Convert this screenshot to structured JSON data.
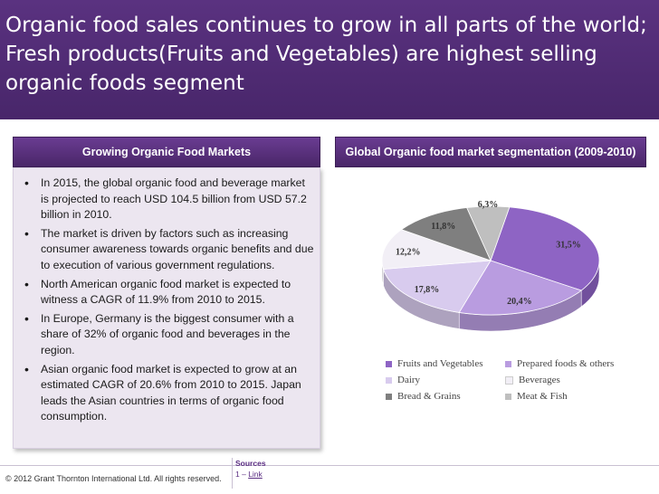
{
  "title": "Organic food sales continues to grow in all parts of the world; Fresh products(Fruits and Vegetables) are highest selling organic foods segment",
  "left_panel": {
    "header": "Growing Organic Food Markets",
    "bullets": [
      " In 2015, the global organic food and beverage market is projected to reach USD 104.5 billion from USD 57.2 billion in 2010.",
      "The market is driven by factors such as increasing consumer awareness towards organic benefits and due to execution of various government regulations.",
      "North American organic food market is expected to witness a CAGR of 11.9% from 2010 to 2015.",
      "In Europe, Germany is the biggest consumer with a share of 32% of organic food and beverages in the region.",
      "Asian organic food market is expected to grow at an estimated CAGR of 20.6% from 2010 to 2015. Japan leads the Asian countries in terms of organic food consumption."
    ]
  },
  "right_panel": {
    "header": "Global Organic food market segmentation (2009-2010)"
  },
  "chart_data": {
    "type": "pie",
    "title": "Global Organic food market segmentation (2009-2010)",
    "style": "3d",
    "legend_position": "bottom",
    "slices": [
      {
        "label": "Fruits and Vegetables",
        "value": 31.5,
        "display": "31,5%",
        "color": "#8e64c4"
      },
      {
        "label": "Prepared foods & others",
        "value": 20.4,
        "display": "20,4%",
        "color": "#b99ce0"
      },
      {
        "label": "Dairy",
        "value": 17.8,
        "display": "17,8%",
        "color": "#d8cbee"
      },
      {
        "label": "Beverages",
        "value": 12.2,
        "display": "12,2%",
        "color": "#f2eff6"
      },
      {
        "label": "Bread & Grains",
        "value": 11.8,
        "display": "11,8%",
        "color": "#7f7f7f"
      },
      {
        "label": "Meat & Fish",
        "value": 6.3,
        "display": "6,3%",
        "color": "#bfbfbf"
      }
    ]
  },
  "footer": {
    "copyright": "© 2012 Grant Thornton International Ltd. All rights reserved.",
    "sources_label": "Sources",
    "source_prefix": "1 – ",
    "source_link": "Link"
  }
}
